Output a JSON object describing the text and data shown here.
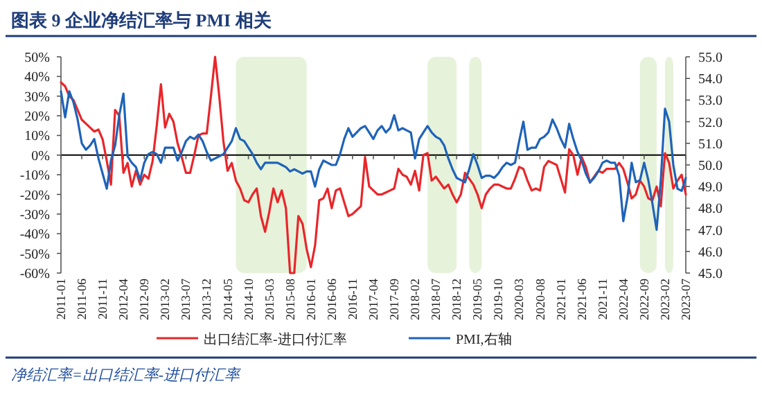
{
  "chart_data": {
    "type": "line",
    "title": "图表 9    企业净结汇率与 PMI 相关",
    "annotations": [
      "净结汇率=出口结汇率-进口付汇率"
    ],
    "legend": "bottom",
    "x": [
      "2011-01",
      "2011-02",
      "2011-03",
      "2011-04",
      "2011-05",
      "2011-06",
      "2011-07",
      "2011-08",
      "2011-09",
      "2011-10",
      "2011-11",
      "2011-12",
      "2012-01",
      "2012-02",
      "2012-03",
      "2012-04",
      "2012-05",
      "2012-06",
      "2012-07",
      "2012-08",
      "2012-09",
      "2012-10",
      "2012-11",
      "2012-12",
      "2013-01",
      "2013-02",
      "2013-03",
      "2013-04",
      "2013-05",
      "2013-06",
      "2013-07",
      "2013-08",
      "2013-09",
      "2013-10",
      "2013-11",
      "2013-12",
      "2014-01",
      "2014-02",
      "2014-03",
      "2014-04",
      "2014-05",
      "2014-06",
      "2014-07",
      "2014-08",
      "2014-09",
      "2014-10",
      "2014-11",
      "2014-12",
      "2015-01",
      "2015-02",
      "2015-03",
      "2015-04",
      "2015-05",
      "2015-06",
      "2015-07",
      "2015-08",
      "2015-09",
      "2015-10",
      "2015-11",
      "2015-12",
      "2016-01",
      "2016-02",
      "2016-03",
      "2016-04",
      "2016-05",
      "2016-06",
      "2016-07",
      "2016-08",
      "2016-09",
      "2016-10",
      "2016-11",
      "2016-12",
      "2017-01",
      "2017-02",
      "2017-03",
      "2017-04",
      "2017-05",
      "2017-06",
      "2017-07",
      "2017-08",
      "2017-09",
      "2017-10",
      "2017-11",
      "2017-12",
      "2018-01",
      "2018-02",
      "2018-03",
      "2018-04",
      "2018-05",
      "2018-06",
      "2018-07",
      "2018-08",
      "2018-09",
      "2018-10",
      "2018-11",
      "2018-12",
      "2019-01",
      "2019-02",
      "2019-03",
      "2019-04",
      "2019-05",
      "2019-06",
      "2019-07",
      "2019-08",
      "2019-09",
      "2019-10",
      "2019-11",
      "2019-12",
      "2020-01",
      "2020-02",
      "2020-03",
      "2020-04",
      "2020-05",
      "2020-06",
      "2020-07",
      "2020-08",
      "2020-09",
      "2020-10",
      "2020-11",
      "2020-12",
      "2021-01",
      "2021-02",
      "2021-03",
      "2021-04",
      "2021-05",
      "2021-06",
      "2021-07",
      "2021-08",
      "2021-09",
      "2021-10",
      "2021-11",
      "2021-12",
      "2022-01",
      "2022-02",
      "2022-03",
      "2022-04",
      "2022-05",
      "2022-06",
      "2022-07",
      "2022-08",
      "2022-09",
      "2022-10",
      "2022-11",
      "2022-12",
      "2023-01",
      "2023-02",
      "2023-03",
      "2023-04",
      "2023-05",
      "2023-06",
      "2023-07"
    ],
    "xlim": [
      "2011-01",
      "2023-07"
    ],
    "xticks": [
      "2011-01",
      "2011-06",
      "2011-11",
      "2012-04",
      "2012-09",
      "2013-02",
      "2013-07",
      "2013-12",
      "2014-05",
      "2014-10",
      "2015-03",
      "2015-08",
      "2016-01",
      "2016-06",
      "2016-11",
      "2017-04",
      "2017-09",
      "2018-02",
      "2018-07",
      "2018-12",
      "2019-05",
      "2019-10",
      "2020-03",
      "2020-08",
      "2021-01",
      "2021-06",
      "2021-11",
      "2022-04",
      "2022-09",
      "2023-02",
      "2023-07"
    ],
    "ylim": [
      -60,
      50
    ],
    "yticks": [
      {
        "value": -60,
        "label": "-60%"
      },
      {
        "value": -50,
        "label": "-50%"
      },
      {
        "value": -40,
        "label": "-40%"
      },
      {
        "value": -30,
        "label": "-30%"
      },
      {
        "value": -20,
        "label": "-20%"
      },
      {
        "value": -10,
        "label": "-10%"
      },
      {
        "value": 0,
        "label": "0%"
      },
      {
        "value": 10,
        "label": "10%"
      },
      {
        "value": 20,
        "label": "20%"
      },
      {
        "value": 30,
        "label": "30%"
      },
      {
        "value": 40,
        "label": "40%"
      },
      {
        "value": 50,
        "label": "50%"
      }
    ],
    "y2lim": [
      45,
      55
    ],
    "y2ticks": [
      {
        "value": 45,
        "label": "45.0"
      },
      {
        "value": 46,
        "label": "46.0"
      },
      {
        "value": 47,
        "label": "47.0"
      },
      {
        "value": 48,
        "label": "48.0"
      },
      {
        "value": 49,
        "label": "49.0"
      },
      {
        "value": 50,
        "label": "50.0"
      },
      {
        "value": 51,
        "label": "51.0"
      },
      {
        "value": 52,
        "label": "52.0"
      },
      {
        "value": 53,
        "label": "53.0"
      },
      {
        "value": 54,
        "label": "54.0"
      },
      {
        "value": 55,
        "label": "55.0"
      }
    ],
    "bands": [
      {
        "axis": "x",
        "from": "2014-07",
        "to": "2015-12",
        "color": "#e6f2da"
      },
      {
        "axis": "x",
        "from": "2018-05",
        "to": "2018-12",
        "color": "#e6f2da"
      },
      {
        "axis": "x",
        "from": "2019-03",
        "to": "2019-06",
        "color": "#e6f2da"
      },
      {
        "axis": "x",
        "from": "2022-08",
        "to": "2022-12",
        "color": "#e6f2da"
      },
      {
        "axis": "x",
        "from": "2023-02",
        "to": "2023-04",
        "color": "#e6f2da"
      }
    ],
    "ref_lines": [
      {
        "axis": "y",
        "value": 0,
        "color": "#000000"
      }
    ],
    "series": [
      {
        "name": "出口结汇率-进口付汇率",
        "color": "#e8262a",
        "values": [
          37,
          35,
          30,
          28,
          23,
          18,
          16,
          14,
          12,
          13,
          8,
          -3,
          -15,
          23,
          20,
          -9,
          -4,
          -16,
          -8,
          -15,
          -10,
          -12,
          -3,
          15,
          36,
          14,
          21,
          17,
          6,
          -1,
          -9,
          -9,
          0,
          10,
          11,
          11,
          30,
          50,
          30,
          7,
          -8,
          -4,
          -13,
          -17,
          -23,
          -24,
          -20,
          -17,
          -31,
          -39,
          -29,
          -17,
          -24,
          -18,
          -27,
          -60,
          -60,
          -31,
          -35,
          -48,
          -57,
          -46,
          -23,
          -22,
          -17,
          -27,
          -18,
          -17,
          -24,
          -31,
          -30,
          -28,
          -26,
          -1,
          -16,
          -18,
          -20,
          -20,
          -19,
          -18,
          -17,
          -7,
          -10,
          -11,
          -15,
          -8,
          -18,
          0,
          1,
          -13,
          -11,
          -14,
          -17,
          -15,
          -20,
          -24,
          -20,
          -9,
          -12,
          -15,
          -20,
          -27,
          -20,
          -17,
          -15,
          -15,
          -16,
          -17,
          -17,
          -12,
          -6,
          -7,
          -13,
          -18,
          -17,
          -18,
          -6,
          -3,
          -4,
          -5,
          -12,
          -19,
          3,
          0,
          -10,
          -1,
          -6,
          -14,
          -11,
          -8,
          -9,
          -7,
          -7,
          -7,
          -4,
          -7,
          -14,
          -22,
          -20,
          -13,
          -16,
          -22,
          -23,
          -16,
          -26,
          1,
          -4,
          -17,
          -13,
          -10,
          -20
        ]
      },
      {
        "name": "PMI,右轴",
        "color": "#1f63b8",
        "axis": "y2",
        "values": [
          53.4,
          52.2,
          53.4,
          52.9,
          52.1,
          51.0,
          50.7,
          50.9,
          51.2,
          50.3,
          49.6,
          48.9,
          50.2,
          50.9,
          52.3,
          53.3,
          50.4,
          50.1,
          49.9,
          49.3,
          50.1,
          50.5,
          50.6,
          50.5,
          50.1,
          50.8,
          50.8,
          50.8,
          50.2,
          50.6,
          51.1,
          51.3,
          51.2,
          51.4,
          51.1,
          50.6,
          50.2,
          50.3,
          50.4,
          50.5,
          50.8,
          51.1,
          51.7,
          51.2,
          51.1,
          50.8,
          50.5,
          50.1,
          49.8,
          50.1,
          50.1,
          50.1,
          50.1,
          50.0,
          49.9,
          49.7,
          49.8,
          49.7,
          49.6,
          49.7,
          49.7,
          49.0,
          49.8,
          50.2,
          50.1,
          50.0,
          50.0,
          50.5,
          51.2,
          51.7,
          51.3,
          51.5,
          51.7,
          51.8,
          51.5,
          51.2,
          51.6,
          51.8,
          51.5,
          51.7,
          52.3,
          51.6,
          51.7,
          51.6,
          51.5,
          50.3,
          51.2,
          51.5,
          51.8,
          51.5,
          51.3,
          51.2,
          50.9,
          50.3,
          49.8,
          49.4,
          49.3,
          49.2,
          49.8,
          50.5,
          50.0,
          49.4,
          49.5,
          49.5,
          49.4,
          49.6,
          49.9,
          50.1,
          50.0,
          50.1,
          51.1,
          52.0,
          50.7,
          50.8,
          50.8,
          51.2,
          51.3,
          51.5,
          52.1,
          51.7,
          51.2,
          50.8,
          51.9,
          51.2,
          50.6,
          50.2,
          49.6,
          49.2,
          49.4,
          49.7,
          50.1,
          50.2,
          50.1,
          50.1,
          49.5,
          47.4,
          48.5,
          50.1,
          49.2,
          49.3,
          50.1,
          49.3,
          48.2,
          47.0,
          49.3,
          52.6,
          52.0,
          50.0,
          48.9,
          48.8,
          49.4
        ]
      }
    ]
  }
}
